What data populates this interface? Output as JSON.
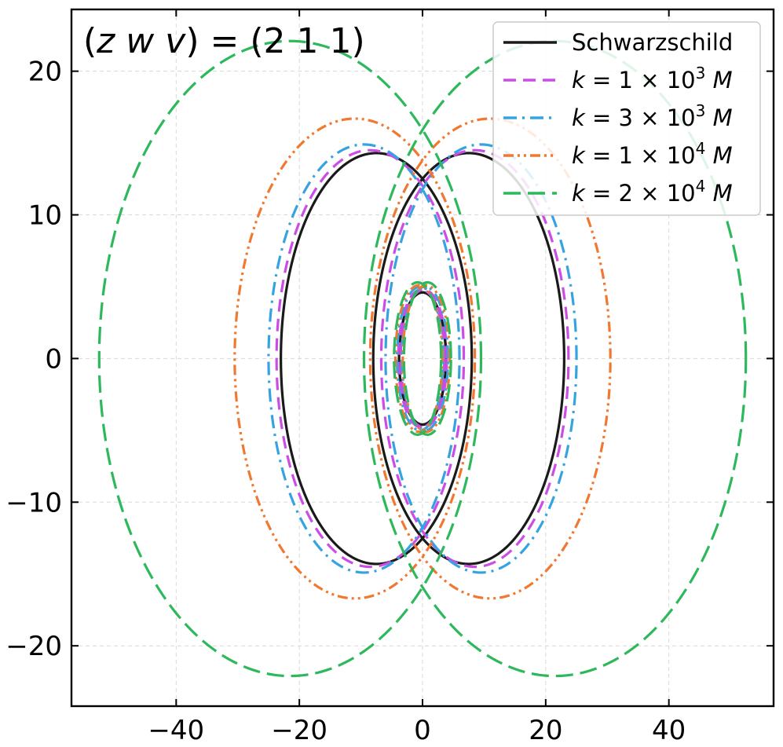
{
  "chart_data": {
    "type": "line",
    "title": "",
    "xlabel": "",
    "ylabel": "",
    "annotation": {
      "open": "(",
      "z": "z",
      "w": "w",
      "v": "v",
      "close_eq": ") = (2 1 1)"
    },
    "xlim": [
      -57,
      57
    ],
    "ylim": [
      -24.2,
      24.3
    ],
    "xticks": [
      -40,
      -20,
      0,
      20,
      40
    ],
    "yticks": [
      -20,
      -10,
      0,
      10,
      20
    ],
    "xtick_labels": [
      "−40",
      "−20",
      "0",
      "20",
      "40"
    ],
    "ytick_labels": [
      "−20",
      "−10",
      "0",
      "10",
      "20"
    ],
    "grid": true,
    "legend_position": "top-right",
    "series": [
      {
        "name": "Schwarzschild",
        "legend": {
          "prefix": "Schwarzschild",
          "coef": "",
          "exp": ""
        },
        "color": "#1a1a1a",
        "style": "solid",
        "outer": {
          "a": 23.0,
          "b": 14.3,
          "x_peak": 7.5
        },
        "inner": {
          "a": 5.3,
          "b": 4.6,
          "xc": 0.0
        }
      },
      {
        "name": "k = 1 × 10^3 M",
        "legend": {
          "prefix": "",
          "coef": "1",
          "exp": "3"
        },
        "color": "#cc4de6",
        "style": "dashed",
        "outer": {
          "a": 23.7,
          "b": 14.5,
          "x_peak": 8.5
        },
        "inner": {
          "a": 5.2,
          "b": 4.8,
          "xc": 0.2
        }
      },
      {
        "name": "k = 3 × 10^3 M",
        "legend": {
          "prefix": "",
          "coef": "3",
          "exp": "3"
        },
        "color": "#36a3e0",
        "style": "dashdot",
        "outer": {
          "a": 25.0,
          "b": 14.9,
          "x_peak": 9.5
        },
        "inner": {
          "a": 5.2,
          "b": 5.0,
          "xc": 0.4
        }
      },
      {
        "name": "k = 1 × 10^4 M",
        "legend": {
          "prefix": "",
          "coef": "1",
          "exp": "4"
        },
        "color": "#f07830",
        "style": "dashdotdot",
        "outer": {
          "a": 30.5,
          "b": 16.7,
          "x_peak": 11.0
        },
        "inner": {
          "a": 5.3,
          "b": 5.1,
          "xc": 0.6
        }
      },
      {
        "name": "k = 2 × 10^4 M",
        "legend": {
          "prefix": "",
          "coef": "2",
          "exp": "4"
        },
        "color": "#2db85c",
        "style": "longdash",
        "outer": {
          "a": 52.5,
          "b": 22.1,
          "x_peak": 21.5
        },
        "inner": {
          "a": 5.3,
          "b": 5.3,
          "xc": 0.8
        }
      }
    ]
  }
}
